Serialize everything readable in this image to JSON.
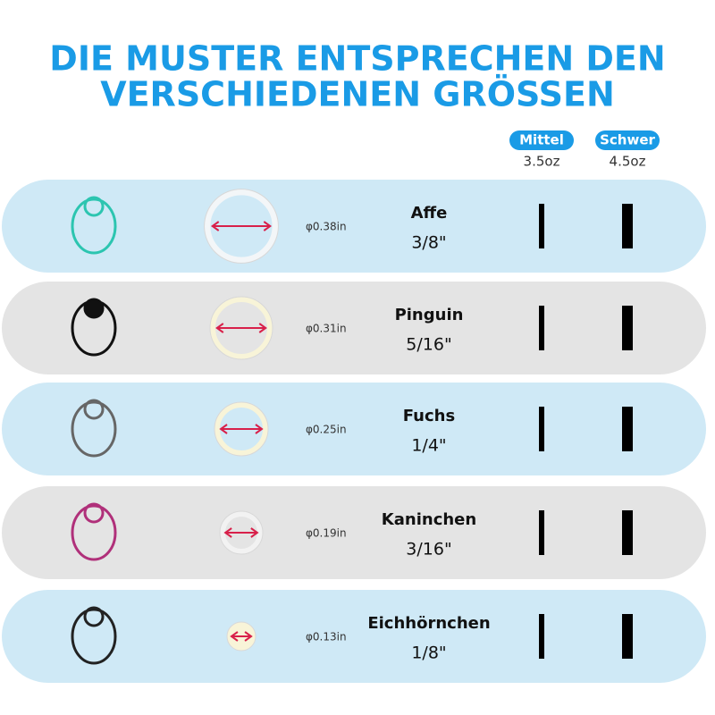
{
  "title": [
    "DIE MUSTER ENTSPRECHEN DEN",
    "VERSCHIEDENEN GRÖSSEN"
  ],
  "columns": [
    {
      "name": "Mittel",
      "weight": "3.5oz"
    },
    {
      "name": "Schwer",
      "weight": "4.5oz"
    }
  ],
  "rows": [
    {
      "animal": "Affe",
      "size": "3/8\"",
      "diameter": "φ0.38in"
    },
    {
      "animal": "Pinguin",
      "size": "5/16\"",
      "diameter": "φ0.31in"
    },
    {
      "animal": "Fuchs",
      "size": "1/4\"",
      "diameter": "φ0.25in"
    },
    {
      "animal": "Kaninchen",
      "size": "3/16\"",
      "diameter": "φ0.19in"
    },
    {
      "animal": "Eichhörnchen",
      "size": "1/8\"",
      "diameter": "φ0.13in"
    }
  ]
}
